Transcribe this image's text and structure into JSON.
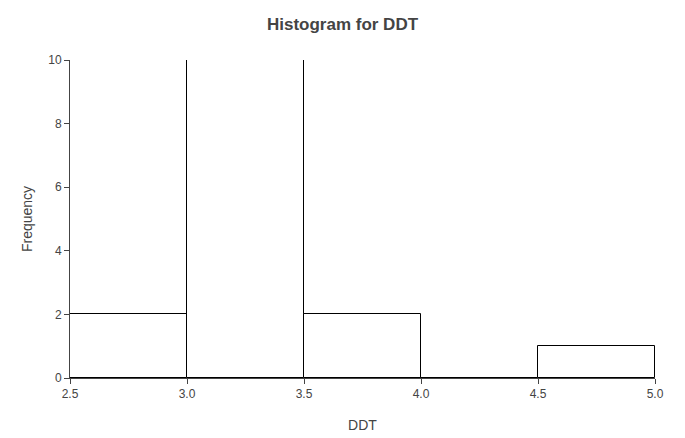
{
  "chart_data": {
    "type": "histogram",
    "title": "Histogram for DDT",
    "xlabel": "DDT",
    "ylabel": "Frequency",
    "bins": [
      2.5,
      3.0,
      3.5,
      4.0,
      4.5,
      5.0
    ],
    "values": [
      2,
      10,
      2,
      0,
      1
    ],
    "color": "#ffffff",
    "xlim": [
      2.5,
      5.0
    ],
    "xticks": [
      2.5,
      {
        "value": 3.0,
        "label": "3.0"
      },
      3.5,
      {
        "value": 4.0,
        "label": "4.0"
      },
      4.5,
      {
        "value": 5.0,
        "label": "5.0"
      }
    ],
    "ylim": [
      0,
      10
    ],
    "yticks": [
      0,
      2,
      4,
      6,
      8,
      10
    ],
    "grid": false
  }
}
